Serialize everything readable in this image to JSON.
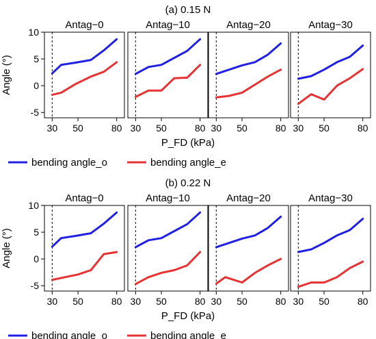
{
  "figures": [
    {
      "id": "a",
      "title": "(a) 0.15 N",
      "xlabel": "P_FD (kPa)",
      "ylabel": "Angle (°)"
    },
    {
      "id": "b",
      "title": "(b) 0.22 N",
      "xlabel": "P_FD (kPa)",
      "ylabel": "Angle (°)"
    }
  ],
  "legend": {
    "series_o": "bending angle_o",
    "series_e": "bending angle_e"
  },
  "colors": {
    "series_o": "#1f1fe6",
    "series_e": "#e63232",
    "panel_bg": "#ffffff",
    "axis": "#000000"
  },
  "chart_data": [
    {
      "type": "line",
      "title": "(a) 0.15 N",
      "xlabel": "P_FD (kPa)",
      "ylabel": "Angle (°)",
      "ylim": [
        -6,
        10
      ],
      "yticks": [
        -5,
        0,
        5,
        10
      ],
      "xticks": [
        30,
        50,
        80
      ],
      "dashed_line_x": 30,
      "panels": [
        {
          "title": "Antag−0",
          "series": [
            {
              "name": "bending angle_o",
              "x": [
                30,
                37,
                48,
                60,
                70,
                80
              ],
              "values": [
                2.3,
                3.9,
                4.3,
                4.8,
                6.6,
                8.7
              ]
            },
            {
              "name": "bending angle_e",
              "x": [
                30,
                37,
                48,
                60,
                70,
                80
              ],
              "values": [
                -1.7,
                -1.3,
                0.3,
                1.7,
                2.6,
                4.4
              ]
            }
          ]
        },
        {
          "title": "Antag−10",
          "series": [
            {
              "name": "bending angle_o",
              "x": [
                30,
                40,
                50,
                60,
                70,
                80
              ],
              "values": [
                2.2,
                3.5,
                3.9,
                5.2,
                6.5,
                8.7
              ]
            },
            {
              "name": "bending angle_e",
              "x": [
                30,
                40,
                50,
                60,
                70,
                80
              ],
              "values": [
                -2.1,
                -0.9,
                -0.9,
                1.4,
                1.5,
                3.9
              ]
            }
          ]
        },
        {
          "title": "Antag−20",
          "series": [
            {
              "name": "bending angle_o",
              "x": [
                30,
                40,
                50,
                60,
                70,
                80
              ],
              "values": [
                2.2,
                3.0,
                3.8,
                4.4,
                5.8,
                7.9
              ]
            },
            {
              "name": "bending angle_e",
              "x": [
                30,
                40,
                50,
                60,
                70,
                80
              ],
              "values": [
                -2.2,
                -1.9,
                -1.3,
                0.2,
                1.7,
                3.0
              ]
            }
          ]
        },
        {
          "title": "Antag−30",
          "series": [
            {
              "name": "bending angle_o",
              "x": [
                30,
                40,
                50,
                60,
                70,
                80
              ],
              "values": [
                1.3,
                1.8,
                3.0,
                4.4,
                5.4,
                7.5
              ]
            },
            {
              "name": "bending angle_e",
              "x": [
                30,
                40,
                50,
                60,
                70,
                80
              ],
              "values": [
                -3.4,
                -1.6,
                -2.6,
                0.0,
                1.4,
                3.1
              ]
            }
          ]
        }
      ]
    },
    {
      "type": "line",
      "title": "(b) 0.22 N",
      "xlabel": "P_FD (kPa)",
      "ylabel": "Angle (°)",
      "ylim": [
        -6,
        10
      ],
      "yticks": [
        -5,
        0,
        5,
        10
      ],
      "xticks": [
        30,
        50,
        80
      ],
      "dashed_line_x": 30,
      "panels": [
        {
          "title": "Antag−0",
          "series": [
            {
              "name": "bending angle_o",
              "x": [
                30,
                37,
                48,
                60,
                70,
                80
              ],
              "values": [
                2.3,
                3.9,
                4.3,
                4.8,
                6.6,
                8.7
              ]
            },
            {
              "name": "bending angle_e",
              "x": [
                30,
                40,
                50,
                60,
                70,
                80
              ],
              "values": [
                -3.9,
                -3.4,
                -2.9,
                -2.1,
                0.9,
                1.3
              ]
            }
          ]
        },
        {
          "title": "Antag−10",
          "series": [
            {
              "name": "bending angle_o",
              "x": [
                30,
                40,
                50,
                60,
                70,
                80
              ],
              "values": [
                2.2,
                3.5,
                3.9,
                5.2,
                6.5,
                8.7
              ]
            },
            {
              "name": "bending angle_e",
              "x": [
                30,
                40,
                50,
                60,
                70,
                80
              ],
              "values": [
                -4.7,
                -3.4,
                -2.6,
                -2.1,
                -1.2,
                1.3
              ]
            }
          ]
        },
        {
          "title": "Antag−20",
          "series": [
            {
              "name": "bending angle_o",
              "x": [
                30,
                40,
                50,
                60,
                70,
                80
              ],
              "values": [
                2.2,
                3.0,
                3.8,
                4.4,
                5.8,
                7.9
              ]
            },
            {
              "name": "bending angle_e",
              "x": [
                30,
                37,
                50,
                60,
                70,
                80
              ],
              "values": [
                -4.6,
                -3.4,
                -4.4,
                -2.6,
                -1.2,
                0.0
              ]
            }
          ]
        },
        {
          "title": "Antag−30",
          "series": [
            {
              "name": "bending angle_o",
              "x": [
                30,
                40,
                50,
                60,
                70,
                80
              ],
              "values": [
                1.3,
                1.8,
                3.0,
                4.4,
                5.4,
                7.5
              ]
            },
            {
              "name": "bending angle_e",
              "x": [
                30,
                40,
                50,
                60,
                70,
                80
              ],
              "values": [
                -5.2,
                -4.4,
                -4.4,
                -3.4,
                -1.7,
                -0.5
              ]
            }
          ]
        }
      ]
    }
  ]
}
